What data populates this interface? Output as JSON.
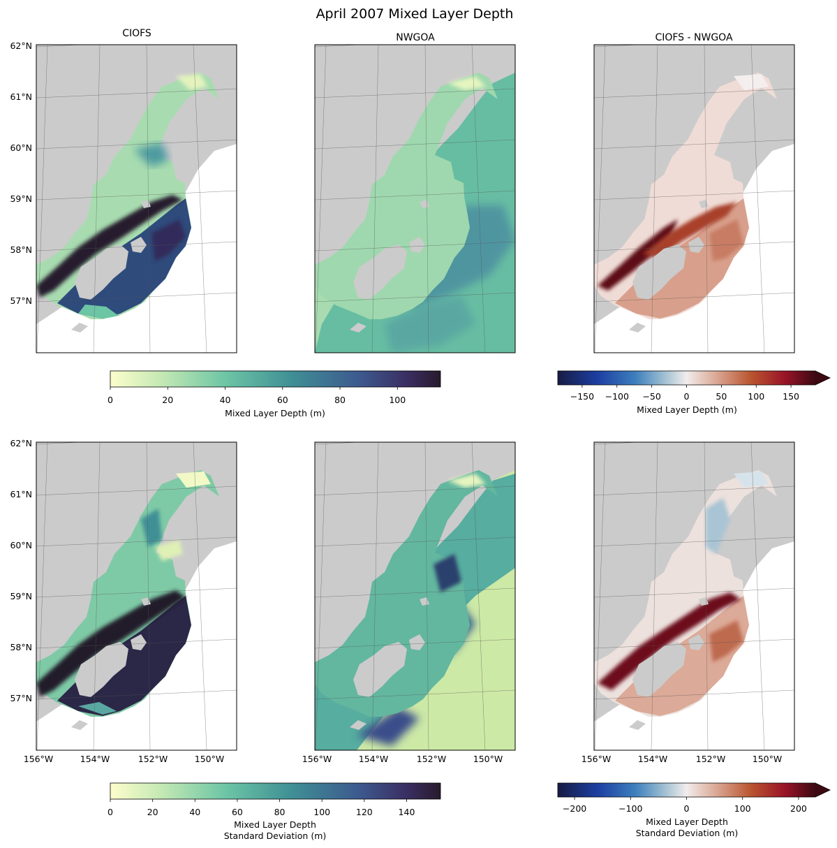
{
  "suptitle": "April 2007 Mixed Layer Depth",
  "column_titles": [
    "CIOFS",
    "NWGOA",
    "CIOFS - NWGOA"
  ],
  "chart_data": [
    {
      "type": "heatmap",
      "panel": "row1-col1",
      "title": "CIOFS",
      "yticks": [
        "62°N",
        "61°N",
        "60°N",
        "59°N",
        "58°N",
        "57°N"
      ],
      "xticks": [],
      "colormap": "deep",
      "colorbar": {
        "label": "Mixed Layer Depth (m)",
        "ticks": [
          "0",
          "20",
          "40",
          "60",
          "80",
          "100"
        ],
        "range": [
          0,
          115
        ]
      }
    },
    {
      "type": "heatmap",
      "panel": "row1-col2",
      "title": "NWGOA",
      "yticks": [],
      "xticks": [],
      "colormap": "deep",
      "colorbar": {
        "label": "Mixed Layer Depth (m)",
        "ticks": [
          "0",
          "20",
          "40",
          "60",
          "80",
          "100"
        ],
        "range": [
          0,
          115
        ]
      }
    },
    {
      "type": "heatmap",
      "panel": "row1-col3",
      "title": "CIOFS - NWGOA",
      "yticks": [],
      "xticks": [],
      "colormap": "balance",
      "colorbar": {
        "label": "Mixed Layer Depth (m)",
        "ticks": [
          "−150",
          "−100",
          "−50",
          "0",
          "50",
          "100",
          "150"
        ],
        "range": [
          -185,
          185
        ],
        "extend": "max"
      }
    },
    {
      "type": "heatmap",
      "panel": "row2-col1",
      "title": "",
      "yticks": [
        "62°N",
        "61°N",
        "60°N",
        "59°N",
        "58°N",
        "57°N"
      ],
      "xticks": [
        "156°W",
        "154°W",
        "152°W",
        "150°W"
      ],
      "colormap": "deep",
      "colorbar": {
        "label_line1": "Mixed Layer Depth",
        "label_line2": "Standard Deviation (m)",
        "ticks": [
          "0",
          "20",
          "40",
          "60",
          "80",
          "100",
          "120",
          "140"
        ],
        "range": [
          0,
          156
        ]
      }
    },
    {
      "type": "heatmap",
      "panel": "row2-col2",
      "title": "",
      "yticks": [],
      "xticks": [
        "156°W",
        "154°W",
        "152°W",
        "150°W"
      ],
      "colormap": "deep",
      "colorbar": {
        "label_line1": "Mixed Layer Depth",
        "label_line2": "Standard Deviation (m)",
        "ticks": [
          "0",
          "20",
          "40",
          "60",
          "80",
          "100",
          "120",
          "140"
        ],
        "range": [
          0,
          156
        ]
      }
    },
    {
      "type": "heatmap",
      "panel": "row2-col3",
      "title": "",
      "yticks": [],
      "xticks": [
        "156°W",
        "154°W",
        "152°W",
        "150°W"
      ],
      "colormap": "balance",
      "colorbar": {
        "label_line1": "Mixed Layer Depth",
        "label_line2": "Standard Deviation (m)",
        "ticks": [
          "−200",
          "−100",
          "0",
          "100",
          "200"
        ],
        "range": [
          -230,
          230
        ],
        "extend": "max"
      }
    }
  ],
  "labels": {
    "y": [
      "62°N",
      "61°N",
      "60°N",
      "59°N",
      "58°N",
      "57°N"
    ],
    "x": [
      "156°W",
      "154°W",
      "152°W",
      "150°W"
    ],
    "cb1": {
      "label": "Mixed Layer Depth (m)",
      "ticks": [
        "0",
        "20",
        "40",
        "60",
        "80",
        "100"
      ]
    },
    "cb2": {
      "label": "Mixed Layer Depth (m)",
      "ticks": [
        "−150",
        "−100",
        "−50",
        "0",
        "50",
        "100",
        "150"
      ]
    },
    "cb3": {
      "label1": "Mixed Layer Depth",
      "label2": "Standard Deviation (m)",
      "ticks": [
        "0",
        "20",
        "40",
        "60",
        "80",
        "100",
        "120",
        "140"
      ]
    },
    "cb4": {
      "label1": "Mixed Layer Depth",
      "label2": "Standard Deviation (m)",
      "ticks": [
        "−200",
        "−100",
        "0",
        "100",
        "200"
      ]
    }
  },
  "colors": {
    "land": "#cbcbcb",
    "deep_low": "#fdfecc",
    "deep_mid": "#5fbfa3",
    "deep_high": "#281a2c",
    "balance_low": "#181c43",
    "balance_mid": "#f1ecec",
    "balance_high": "#3c0912"
  }
}
